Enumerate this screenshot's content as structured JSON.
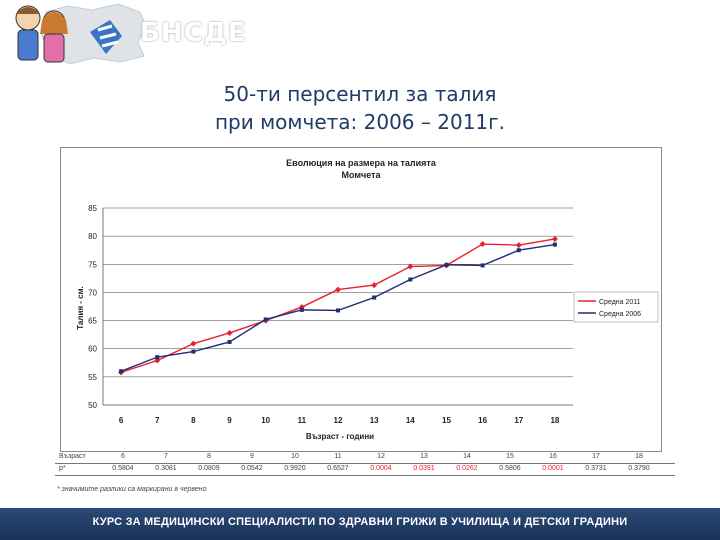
{
  "header": {
    "brand": "БНСДЕ"
  },
  "slide": {
    "title_line1": "50-ти персентил за талия",
    "title_line2": "при момчета: 2006 – 2011г."
  },
  "chart_data": {
    "type": "line",
    "title": "Еволюция на размера на талията",
    "subtitle": "Момчета",
    "xlabel": "Възраст - години",
    "ylabel": "Талия - см.",
    "ylim": [
      50,
      85
    ],
    "yticks": [
      50,
      55,
      60,
      65,
      70,
      75,
      80,
      85
    ],
    "categories": [
      "6",
      "7",
      "8",
      "9",
      "10",
      "11",
      "12",
      "13",
      "14",
      "15",
      "16",
      "17",
      "18"
    ],
    "grid": true,
    "legend_position": "right",
    "series": [
      {
        "name": "Средна 2011",
        "color": "#e8202a",
        "marker": "diamond",
        "values": [
          55.8,
          57.9,
          60.9,
          62.8,
          65.0,
          67.4,
          70.5,
          71.3,
          74.6,
          74.8,
          78.6,
          78.4,
          79.5
        ]
      },
      {
        "name": "Средна 2006",
        "color": "#1f2e7a",
        "marker": "square",
        "values": [
          56.0,
          58.5,
          59.5,
          61.2,
          65.2,
          66.9,
          66.8,
          69.1,
          72.3,
          74.9,
          74.8,
          77.5,
          78.5
        ]
      }
    ]
  },
  "table": {
    "row1_label": "Възраст",
    "row1_values": [
      "6",
      "7",
      "8",
      "9",
      "10",
      "11",
      "12",
      "13",
      "14",
      "15",
      "16",
      "17",
      "18"
    ],
    "row2_label": "p*",
    "row2_values": [
      "0.5804",
      "0.3081",
      "0.0809",
      "0.0542",
      "0.9920",
      "0.6527",
      "0.0004",
      "0.0391",
      "0.0262",
      "0.5806",
      "0.0001",
      "0.3731",
      "0.3790"
    ],
    "row2_colors": [
      "#444444",
      "#444444",
      "#444444",
      "#444444",
      "#444444",
      "#444444",
      "#e8202a",
      "#e8202a",
      "#e8202a",
      "#444444",
      "#e8202a",
      "#444444",
      "#444444"
    ],
    "footnote": "* значимите разлики са маркирани в червено"
  },
  "footer": {
    "text": "КУРС ЗА МЕДИЦИНСКИ СПЕЦИАЛИСТИ ПО ЗДРАВНИ ГРИЖИ В УЧИЛИЩА И ДЕТСКИ ГРАДИНИ"
  }
}
